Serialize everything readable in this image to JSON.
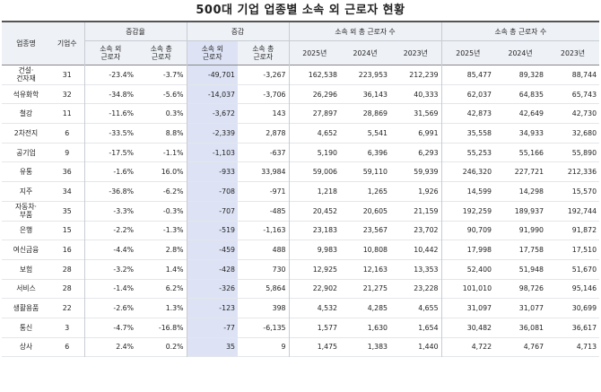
{
  "title": "500대 기업 업종별 소속 외 근로자 현황",
  "headers": {
    "industry": "업종명",
    "companies": "기업수",
    "rate_group": "증감율",
    "rate_outside": "소속 외\n근로자",
    "rate_total": "소속 총\n근로자",
    "change_group": "증감",
    "change_outside": "소속 외\n근로자",
    "change_total": "소속 총\n근로자",
    "outside_group": "소속 외 총 근로자 수",
    "total_group": "소속 총 근로자 수",
    "y2025": "2025년",
    "y2024": "2024년",
    "y2023": "2023년"
  },
  "rows": [
    {
      "industry": "건설·\n건자재",
      "companies": "31",
      "rate_out": "-23.4%",
      "rate_tot": "-3.7%",
      "chg_out": "-49,701",
      "chg_tot": "-3,267",
      "out_2025": "162,538",
      "out_2024": "223,953",
      "out_2023": "212,239",
      "tot_2025": "85,477",
      "tot_2024": "89,328",
      "tot_2023": "88,744"
    },
    {
      "industry": "석유화학",
      "companies": "32",
      "rate_out": "-34.8%",
      "rate_tot": "-5.6%",
      "chg_out": "-14,037",
      "chg_tot": "-3,706",
      "out_2025": "26,296",
      "out_2024": "36,143",
      "out_2023": "40,333",
      "tot_2025": "62,037",
      "tot_2024": "64,835",
      "tot_2023": "65,743"
    },
    {
      "industry": "철강",
      "companies": "11",
      "rate_out": "-11.6%",
      "rate_tot": "0.3%",
      "chg_out": "-3,672",
      "chg_tot": "143",
      "out_2025": "27,897",
      "out_2024": "28,869",
      "out_2023": "31,569",
      "tot_2025": "42,873",
      "tot_2024": "42,649",
      "tot_2023": "42,730"
    },
    {
      "industry": "2차전지",
      "companies": "6",
      "rate_out": "-33.5%",
      "rate_tot": "8.8%",
      "chg_out": "-2,339",
      "chg_tot": "2,878",
      "out_2025": "4,652",
      "out_2024": "5,541",
      "out_2023": "6,991",
      "tot_2025": "35,558",
      "tot_2024": "34,933",
      "tot_2023": "32,680"
    },
    {
      "industry": "공기업",
      "companies": "9",
      "rate_out": "-17.5%",
      "rate_tot": "-1.1%",
      "chg_out": "-1,103",
      "chg_tot": "-637",
      "out_2025": "5,190",
      "out_2024": "6,396",
      "out_2023": "6,293",
      "tot_2025": "55,253",
      "tot_2024": "55,166",
      "tot_2023": "55,890"
    },
    {
      "industry": "유통",
      "companies": "36",
      "rate_out": "-1.6%",
      "rate_tot": "16.0%",
      "chg_out": "-933",
      "chg_tot": "33,984",
      "out_2025": "59,006",
      "out_2024": "59,110",
      "out_2023": "59,939",
      "tot_2025": "246,320",
      "tot_2024": "227,721",
      "tot_2023": "212,336"
    },
    {
      "industry": "지주",
      "companies": "34",
      "rate_out": "-36.8%",
      "rate_tot": "-6.2%",
      "chg_out": "-708",
      "chg_tot": "-971",
      "out_2025": "1,218",
      "out_2024": "1,265",
      "out_2023": "1,926",
      "tot_2025": "14,599",
      "tot_2024": "14,298",
      "tot_2023": "15,570"
    },
    {
      "industry": "자동차·\n부품",
      "companies": "35",
      "rate_out": "-3.3%",
      "rate_tot": "-0.3%",
      "chg_out": "-707",
      "chg_tot": "-485",
      "out_2025": "20,452",
      "out_2024": "20,605",
      "out_2023": "21,159",
      "tot_2025": "192,259",
      "tot_2024": "189,937",
      "tot_2023": "192,744"
    },
    {
      "industry": "은행",
      "companies": "15",
      "rate_out": "-2.2%",
      "rate_tot": "-1.3%",
      "chg_out": "-519",
      "chg_tot": "-1,163",
      "out_2025": "23,183",
      "out_2024": "23,567",
      "out_2023": "23,702",
      "tot_2025": "90,709",
      "tot_2024": "91,990",
      "tot_2023": "91,872"
    },
    {
      "industry": "여신금융",
      "companies": "16",
      "rate_out": "-4.4%",
      "rate_tot": "2.8%",
      "chg_out": "-459",
      "chg_tot": "488",
      "out_2025": "9,983",
      "out_2024": "10,808",
      "out_2023": "10,442",
      "tot_2025": "17,998",
      "tot_2024": "17,758",
      "tot_2023": "17,510"
    },
    {
      "industry": "보험",
      "companies": "28",
      "rate_out": "-3.2%",
      "rate_tot": "1.4%",
      "chg_out": "-428",
      "chg_tot": "730",
      "out_2025": "12,925",
      "out_2024": "12,163",
      "out_2023": "13,353",
      "tot_2025": "52,400",
      "tot_2024": "51,948",
      "tot_2023": "51,670"
    },
    {
      "industry": "서비스",
      "companies": "28",
      "rate_out": "-1.4%",
      "rate_tot": "6.2%",
      "chg_out": "-326",
      "chg_tot": "5,864",
      "out_2025": "22,902",
      "out_2024": "21,275",
      "out_2023": "23,228",
      "tot_2025": "101,010",
      "tot_2024": "98,726",
      "tot_2023": "95,146"
    },
    {
      "industry": "생활용품",
      "companies": "22",
      "rate_out": "-2.6%",
      "rate_tot": "1.3%",
      "chg_out": "-123",
      "chg_tot": "398",
      "out_2025": "4,532",
      "out_2024": "4,285",
      "out_2023": "4,655",
      "tot_2025": "31,097",
      "tot_2024": "31,077",
      "tot_2023": "30,699"
    },
    {
      "industry": "통신",
      "companies": "3",
      "rate_out": "-4.7%",
      "rate_tot": "-16.8%",
      "chg_out": "-77",
      "chg_tot": "-6,135",
      "out_2025": "1,577",
      "out_2024": "1,630",
      "out_2023": "1,654",
      "tot_2025": "30,482",
      "tot_2024": "36,081",
      "tot_2023": "36,617"
    },
    {
      "industry": "상사",
      "companies": "6",
      "rate_out": "2.4%",
      "rate_tot": "0.2%",
      "chg_out": "35",
      "chg_tot": "9",
      "out_2025": "1,475",
      "out_2024": "1,383",
      "out_2023": "1,440",
      "tot_2025": "4,722",
      "tot_2024": "4,767",
      "tot_2023": "4,713"
    }
  ]
}
